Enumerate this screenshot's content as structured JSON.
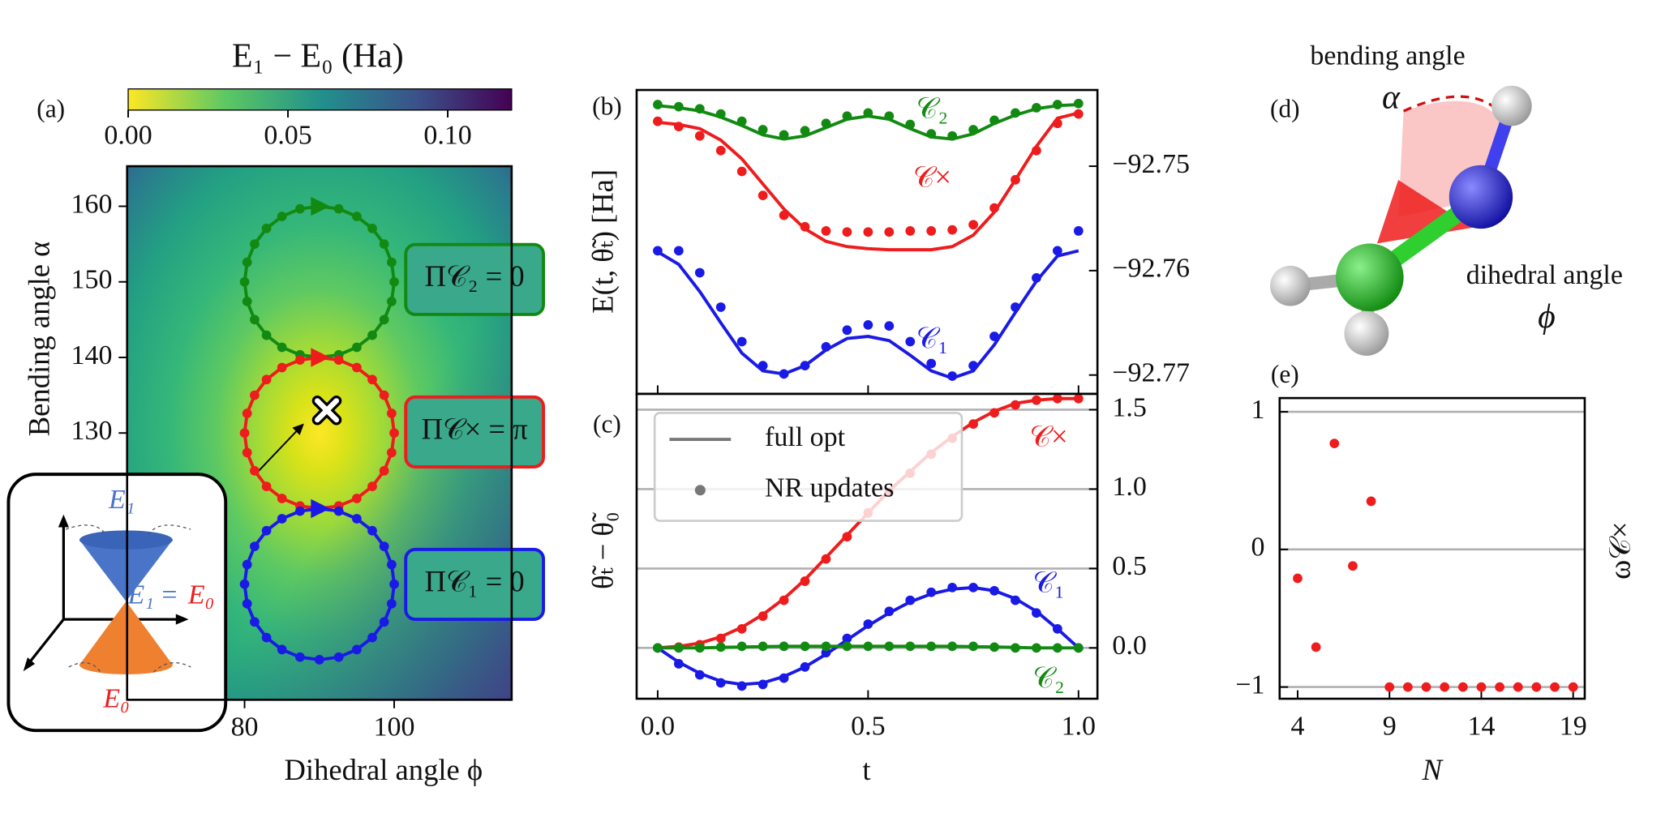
{
  "chart_data": [
    {
      "type": "heatmap",
      "panel": "(a)",
      "colorbar_label": "E₁ − E₀ (Ha)",
      "colormap": "viridis_r",
      "clim": [
        0,
        0.12
      ],
      "cticks": [
        {
          "value": 0,
          "label": "0.00"
        },
        0.05,
        {
          "value": 0.1,
          "label": "0.10"
        }
      ],
      "xlabel": "Dihedral angle ϕ",
      "ylabel": "Bending angle α",
      "xlim": [
        64.3,
        115.7
      ],
      "ylim": [
        94.7,
        165.3
      ],
      "xticks": [
        80,
        100
      ],
      "yticks": [
        130,
        140,
        150,
        160
      ],
      "marker": {
        "x": 91,
        "y": 133
      },
      "inset": {
        "upper": "E₁",
        "crossing_left": "E₁",
        "crossing_eq": "=",
        "crossing_right": "E₀",
        "lower": "E₀"
      },
      "series": [
        {
          "name": "Π𝒞₂ = 0",
          "color": "#128a12",
          "x": [
            90,
            92.59,
            95,
            97.07,
            98.66,
            99.66,
            100,
            99.66,
            98.66,
            97.07,
            95,
            92.59,
            90,
            87.41,
            85,
            82.93,
            81.34,
            80.34,
            80,
            80.34,
            81.34,
            82.93,
            85,
            87.41
          ],
          "y": [
            160,
            159.66,
            158.66,
            157.07,
            155,
            152.59,
            150,
            147.41,
            145,
            142.93,
            141.34,
            140.34,
            140,
            140.34,
            141.34,
            142.93,
            145,
            147.41,
            150,
            152.59,
            155,
            157.07,
            158.66,
            159.66
          ]
        },
        {
          "name": "Π𝒞× = π",
          "color": "#ee1c1c",
          "x": [
            90,
            92.59,
            95,
            97.07,
            98.66,
            99.66,
            100,
            99.66,
            98.66,
            97.07,
            95,
            92.59,
            90,
            87.41,
            85,
            82.93,
            81.34,
            80.34,
            80,
            80.34,
            81.34,
            82.93,
            85,
            87.41
          ],
          "y": [
            140,
            139.66,
            138.66,
            137.07,
            135,
            132.59,
            130,
            127.41,
            125,
            122.93,
            121.34,
            120.34,
            120,
            120.34,
            121.34,
            122.93,
            125,
            127.41,
            130,
            132.59,
            135,
            137.07,
            138.66,
            139.66
          ]
        },
        {
          "name": "Π𝒞₁ = 0",
          "color": "#1a1ae6",
          "x": [
            90,
            92.59,
            95,
            97.07,
            98.66,
            99.66,
            100,
            99.66,
            98.66,
            97.07,
            95,
            92.59,
            90,
            87.41,
            85,
            82.93,
            81.34,
            80.34,
            80,
            80.34,
            81.34,
            82.93,
            85,
            87.41
          ],
          "y": [
            120,
            119.66,
            118.66,
            117.07,
            115,
            112.59,
            110,
            107.41,
            105,
            102.93,
            101.34,
            100.34,
            100,
            100.34,
            101.34,
            102.93,
            105,
            107.41,
            110,
            112.59,
            115,
            117.07,
            118.66,
            119.66
          ]
        }
      ]
    },
    {
      "type": "line",
      "panel": "(b)",
      "ylabel": "E(t, θ̃ₜ) [Ha]",
      "xlim": [
        -0.05,
        1.045
      ],
      "ylim": [
        -92.7718,
        -92.7427
      ],
      "xticks": [
        0,
        0.5,
        1
      ],
      "yticks": [
        {
          "value": -92.75,
          "label": "−92.75"
        },
        {
          "value": -92.76,
          "label": "−92.76"
        },
        {
          "value": -92.77,
          "label": "−92.77"
        }
      ],
      "x": [
        0,
        0.05,
        0.1,
        0.15,
        0.2,
        0.25,
        0.3,
        0.35,
        0.4,
        0.45,
        0.5,
        0.55,
        0.6,
        0.65,
        0.7,
        0.75,
        0.8,
        0.85,
        0.9,
        0.95,
        1
      ],
      "series": [
        {
          "name": "𝒞₂",
          "color": "#128a12",
          "line": [
            -92.7442,
            -92.7444,
            -92.7447,
            -92.7453,
            -92.7461,
            -92.747,
            -92.7474,
            -92.7471,
            -92.7463,
            -92.7455,
            -92.7452,
            -92.7455,
            -92.7464,
            -92.7472,
            -92.7474,
            -92.7469,
            -92.7459,
            -92.7451,
            -92.7445,
            -92.7442,
            -92.7441
          ],
          "dots": [
            -92.7441,
            -92.7443,
            -92.7445,
            -92.745,
            -92.7457,
            -92.7465,
            -92.747,
            -92.7466,
            -92.7459,
            -92.7452,
            -92.7449,
            -92.7452,
            -92.746,
            -92.7469,
            -92.7471,
            -92.7465,
            -92.7456,
            -92.7449,
            -92.7444,
            -92.7441,
            -92.744
          ]
        },
        {
          "name": "𝒞×",
          "color": "#ee1c1c",
          "line": [
            -92.7458,
            -92.746,
            -92.7464,
            -92.7475,
            -92.7493,
            -92.7517,
            -92.7541,
            -92.756,
            -92.7572,
            -92.7577,
            -92.7579,
            -92.758,
            -92.758,
            -92.758,
            -92.7577,
            -92.7566,
            -92.7544,
            -92.7513,
            -92.7481,
            -92.7454,
            -92.7449
          ],
          "dots": [
            -92.7457,
            -92.7462,
            -92.7471,
            -92.7485,
            -92.7505,
            -92.7528,
            -92.7547,
            -92.7558,
            -92.7562,
            -92.7563,
            -92.7563,
            -92.7563,
            -92.7562,
            -92.7562,
            -92.7561,
            -92.7556,
            -92.754,
            -92.7513,
            -92.7485,
            -92.7459,
            -92.745
          ]
        },
        {
          "name": "𝒞₁",
          "color": "#1a1ae6",
          "line": [
            -92.7582,
            -92.7594,
            -92.762,
            -92.765,
            -92.7679,
            -92.7696,
            -92.7699,
            -92.7691,
            -92.7676,
            -92.7665,
            -92.7663,
            -92.7667,
            -92.7681,
            -92.7696,
            -92.7703,
            -92.7696,
            -92.7671,
            -92.764,
            -92.761,
            -92.7586,
            -92.7581
          ],
          "dots": [
            -92.7581,
            -92.7581,
            -92.7602,
            -92.7635,
            -92.7668,
            -92.7691,
            -92.7699,
            -92.7691,
            -92.7673,
            -92.7657,
            -92.7652,
            -92.7653,
            -92.7668,
            -92.7689,
            -92.7701,
            -92.7691,
            -92.7663,
            -92.7635,
            -92.7607,
            -92.7581,
            -92.7562
          ]
        }
      ]
    },
    {
      "type": "line",
      "panel": "(c)",
      "ylabel": "θ̃ₜ − θ̃₀",
      "xlabel": "t",
      "xlim": [
        -0.05,
        1.045
      ],
      "ylim": [
        -0.32,
        1.6
      ],
      "xticks": [
        {
          "value": 0,
          "label": "0.0"
        },
        0.5,
        {
          "value": 1,
          "label": "1.0"
        }
      ],
      "yticks": [
        {
          "value": 0,
          "label": "0.0"
        },
        0.5,
        {
          "value": 1,
          "label": "1.0"
        },
        1.5
      ],
      "grid": true,
      "legend": {
        "line": "full opt",
        "dots": "NR updates",
        "color": "#777777",
        "loc": "upper left"
      },
      "x": [
        0,
        0.05,
        0.1,
        0.15,
        0.2,
        0.25,
        0.3,
        0.35,
        0.4,
        0.45,
        0.5,
        0.55,
        0.6,
        0.65,
        0.7,
        0.75,
        0.8,
        0.85,
        0.9,
        0.95,
        1
      ],
      "series": [
        {
          "name": "𝒞×",
          "color": "#ee1c1c",
          "line": [
            0,
            0.01,
            0.03,
            0.07,
            0.13,
            0.21,
            0.31,
            0.43,
            0.57,
            0.71,
            0.85,
            0.99,
            1.11,
            1.23,
            1.33,
            1.42,
            1.49,
            1.54,
            1.56,
            1.57,
            1.57
          ],
          "dots": [
            0,
            0.005,
            0.02,
            0.06,
            0.12,
            0.2,
            0.3,
            0.42,
            0.56,
            0.7,
            0.85,
            0.98,
            1.1,
            1.22,
            1.32,
            1.41,
            1.48,
            1.53,
            1.56,
            1.57,
            1.57
          ]
        },
        {
          "name": "𝒞₁",
          "color": "#1a1ae6",
          "line": [
            0,
            -0.09,
            -0.16,
            -0.21,
            -0.23,
            -0.22,
            -0.18,
            -0.12,
            -0.04,
            0.05,
            0.14,
            0.22,
            0.29,
            0.34,
            0.37,
            0.38,
            0.36,
            0.31,
            0.23,
            0.12,
            0
          ],
          "dots": [
            0,
            -0.1,
            -0.17,
            -0.22,
            -0.24,
            -0.23,
            -0.19,
            -0.12,
            -0.03,
            0.06,
            0.15,
            0.23,
            0.3,
            0.35,
            0.38,
            0.38,
            0.36,
            0.3,
            0.22,
            0.12,
            0
          ]
        },
        {
          "name": "𝒞₂",
          "color": "#128a12",
          "line": [
            0,
            0,
            0,
            0.003,
            0.006,
            0.008,
            0.01,
            0.01,
            0.01,
            0.01,
            0.01,
            0.01,
            0.01,
            0.01,
            0.01,
            0.008,
            0.006,
            0.003,
            0,
            0,
            0
          ],
          "dots": [
            0,
            0,
            0,
            0.005,
            0.01,
            0.01,
            0.01,
            0.01,
            0.01,
            0.01,
            0.01,
            0.01,
            0.01,
            0.01,
            0.01,
            0.01,
            0.005,
            0,
            0,
            0,
            0
          ]
        }
      ]
    },
    {
      "type": "scatter",
      "panel": "(e)",
      "xlabel": "N",
      "ylabel": "ω𝒞×",
      "color": "#ee1c1c",
      "xlim": [
        3.02,
        19.63
      ],
      "ylim": [
        -1.085,
        1.1
      ],
      "xticks": [
        4,
        9,
        14,
        19
      ],
      "yticks": [
        1,
        0,
        {
          "value": -1,
          "label": "−1"
        }
      ],
      "grid": true,
      "x": [
        4,
        5,
        6,
        7,
        8,
        9,
        10,
        11,
        12,
        13,
        14,
        15,
        16,
        17,
        18,
        19
      ],
      "values": [
        -0.21,
        -0.71,
        0.77,
        -0.12,
        0.35,
        -1,
        -1,
        -1,
        -1,
        -1,
        -1,
        -1,
        -1,
        -1,
        -1,
        -1
      ]
    }
  ],
  "molecule": {
    "panel": "(d)",
    "bending_label": "bending angle",
    "bending_symbol": "α",
    "dihedral_label": "dihedral angle",
    "dihedral_symbol": "ϕ"
  }
}
